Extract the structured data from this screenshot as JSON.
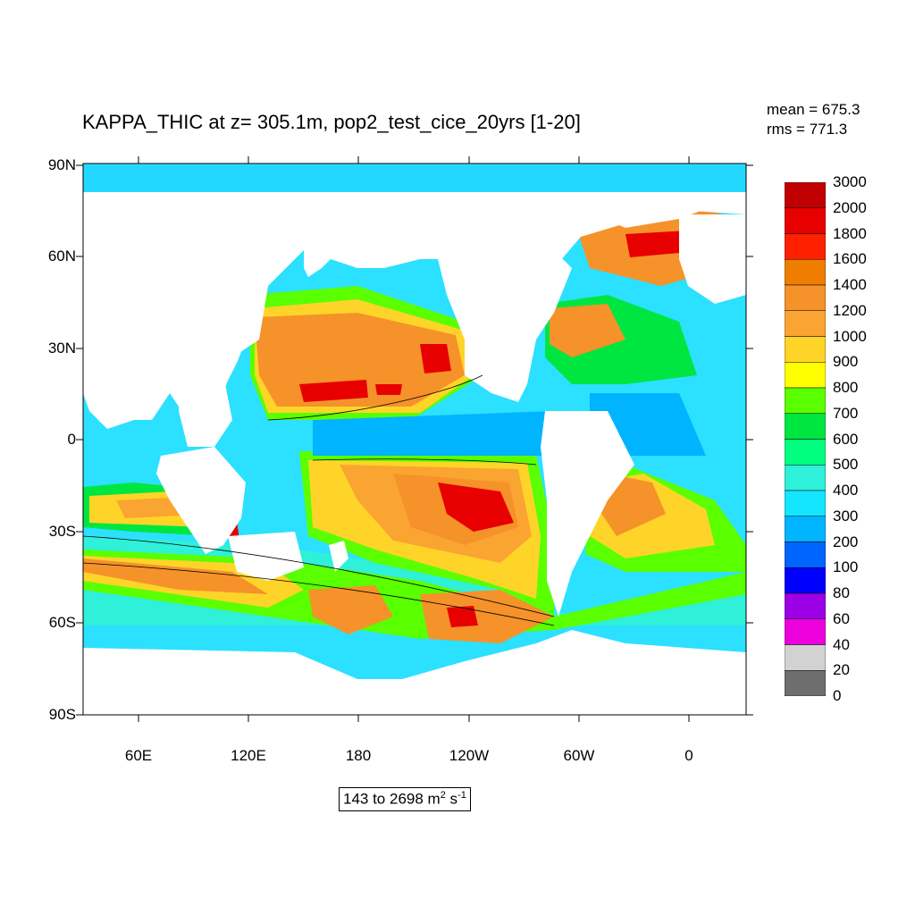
{
  "title": "KAPPA_THIC at z= 305.1m, pop2_test_cice_20yrs [1-20]",
  "stats": {
    "mean": "mean = 675.3",
    "rms": "rms = 771.3"
  },
  "lat_labels": [
    "90N",
    "60N",
    "30N",
    "0",
    "30S",
    "60S",
    "90S"
  ],
  "lon_labels": [
    "60E",
    "120E",
    "180",
    "120W",
    "60W",
    "0"
  ],
  "range": {
    "prefix": "143 to 2698 m",
    "exp1": "2",
    "mid": " s",
    "exp2": "-1"
  },
  "legend": {
    "labels": [
      "3000",
      "2000",
      "1800",
      "1600",
      "1400",
      "1200",
      "1000",
      "900",
      "800",
      "700",
      "600",
      "500",
      "400",
      "300",
      "200",
      "100",
      "80",
      "60",
      "40",
      "20",
      "0"
    ],
    "colors": [
      "#c00000",
      "#e80000",
      "#ff2000",
      "#ee7d00",
      "#f5922a",
      "#faa532",
      "#ffd428",
      "#ffff00",
      "#5aff00",
      "#00e641",
      "#00ff7f",
      "#2ff0d8",
      "#14e6ff",
      "#00b4ff",
      "#0064ff",
      "#0000ff",
      "#9b00e6",
      "#ec00dc",
      "#d2d2d2",
      "#6e6e6e"
    ]
  },
  "colors": {
    "land": "#ffffff",
    "background_ocean": "#2ce0ff"
  }
}
